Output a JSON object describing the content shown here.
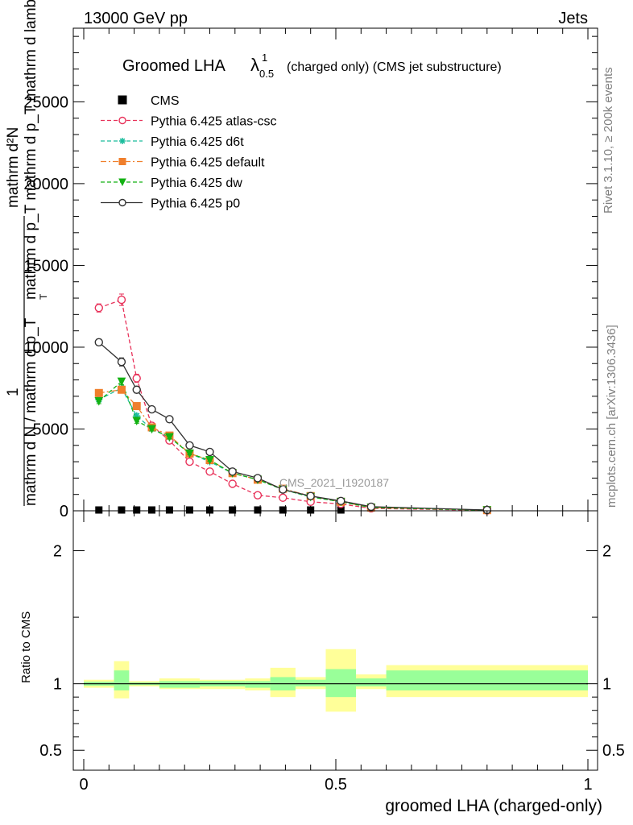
{
  "header": {
    "left": "13000 GeV pp",
    "right": "Jets"
  },
  "side_labels": {
    "rivet": "Rivet 3.1.10, ≥ 200k events",
    "mcplots": "mcplots.cern.ch [arXiv:1306.3436]"
  },
  "watermark": "CMS_2021_I1920187",
  "colors": {
    "atlas_csc": "#e8325a",
    "d6t": "#1abc9c",
    "default": "#f07f2c",
    "dw": "#13b113",
    "p0": "#333333",
    "band_inner": "#99ff99",
    "band_outer": "#ffff99"
  },
  "chart_data": [
    {
      "type": "line",
      "title_main": "Groomed LHA",
      "title_symbol": "λ",
      "title_sup": "1",
      "title_sub": "0.5",
      "title_rest": "(charged only) (CMS jet substructure)",
      "ylabel_top": "mathrm d²N",
      "ylabel_top2": "mathrm d p_T mathrm d p_T mathrm d lambda",
      "ylabel_one": "1",
      "ylabel_bottom": "mathrm d N / mathrm d p_T",
      "ylabel_sub": "T",
      "xlim": [
        0,
        1
      ],
      "ylim": [
        0,
        29500
      ],
      "yticks": [
        0,
        5000,
        10000,
        15000,
        20000,
        25000
      ],
      "ytick_labels": [
        "0",
        "5000",
        "10000",
        "15000",
        "20000",
        "25000"
      ],
      "grid": false,
      "legend_placement": "top-left",
      "x": [
        0.03,
        0.075,
        0.105,
        0.135,
        0.17,
        0.21,
        0.25,
        0.295,
        0.345,
        0.395,
        0.45,
        0.51,
        0.57,
        0.8
      ],
      "series": [
        {
          "name": "CMS",
          "key": "cms",
          "marker": "square-filled",
          "values": [
            0,
            0,
            0,
            0,
            0,
            0,
            0,
            0,
            0,
            0,
            0,
            0,
            null,
            null
          ]
        },
        {
          "name": "Pythia 6.425 atlas-csc",
          "key": "atlas_csc",
          "marker": "circle-open",
          "dash": "dashed",
          "values": [
            12400,
            12900,
            8100,
            5200,
            4300,
            3000,
            2400,
            1650,
            950,
            800,
            550,
            420,
            150,
            30
          ],
          "errors": [
            250,
            350,
            250,
            150,
            100,
            80,
            60,
            50,
            40,
            30,
            25,
            20,
            10,
            5
          ]
        },
        {
          "name": "Pythia 6.425 d6t",
          "key": "d6t",
          "marker": "star",
          "dash": "dashed",
          "values": [
            6800,
            7500,
            5800,
            5000,
            4500,
            3500,
            3000,
            2300,
            1900,
            1300,
            850,
            550,
            200,
            40
          ],
          "errors": [
            150,
            200,
            150,
            120,
            100,
            80,
            70,
            60,
            50,
            40,
            30,
            20,
            10,
            5
          ]
        },
        {
          "name": "Pythia 6.425 default",
          "key": "default",
          "marker": "square-filled",
          "dash": "dashdot",
          "values": [
            7200,
            7400,
            6400,
            5100,
            4600,
            3500,
            3100,
            2300,
            1900,
            1350,
            900,
            550,
            200,
            40
          ],
          "errors": [
            150,
            200,
            150,
            120,
            100,
            80,
            70,
            60,
            50,
            40,
            30,
            20,
            10,
            5
          ]
        },
        {
          "name": "Pythia 6.425 dw",
          "key": "dw",
          "marker": "triangle-down",
          "dash": "dashed",
          "values": [
            6700,
            7900,
            5500,
            5000,
            4500,
            3500,
            3100,
            2300,
            1900,
            1300,
            850,
            550,
            200,
            40
          ],
          "errors": [
            150,
            200,
            150,
            120,
            100,
            80,
            70,
            60,
            50,
            40,
            30,
            20,
            10,
            5
          ]
        },
        {
          "name": "Pythia 6.425 p0",
          "key": "p0",
          "marker": "circle-open",
          "dash": "solid",
          "values": [
            10300,
            9100,
            7400,
            6200,
            5600,
            4000,
            3600,
            2400,
            2000,
            1300,
            900,
            600,
            250,
            50
          ],
          "errors": [
            200,
            250,
            200,
            150,
            120,
            100,
            80,
            60,
            50,
            40,
            30,
            20,
            10,
            5
          ]
        }
      ]
    },
    {
      "type": "area",
      "ylabel": "Ratio to CMS",
      "xlabel": "groomed LHA (charged-only)",
      "xlim": [
        0,
        1
      ],
      "ylim": [
        0.35,
        2.3
      ],
      "yticks": [
        0.5,
        1,
        2
      ],
      "ytick_labels": [
        "0.5",
        "1",
        "2"
      ],
      "xticks": [
        0,
        0.5,
        1
      ],
      "xtick_labels": [
        "0",
        "0.5",
        "1"
      ],
      "reference_line": 1,
      "bins": [
        {
          "lo": 0.0,
          "hi": 0.06,
          "inner": [
            0.985,
            1.015
          ],
          "outer": [
            0.97,
            1.03
          ]
        },
        {
          "lo": 0.06,
          "hi": 0.09,
          "inner": [
            0.95,
            1.1
          ],
          "outer": [
            0.89,
            1.17
          ]
        },
        {
          "lo": 0.09,
          "hi": 0.15,
          "inner": [
            0.99,
            1.01
          ],
          "outer": [
            0.98,
            1.02
          ]
        },
        {
          "lo": 0.15,
          "hi": 0.23,
          "inner": [
            0.97,
            1.02
          ],
          "outer": [
            0.96,
            1.04
          ]
        },
        {
          "lo": 0.23,
          "hi": 0.32,
          "inner": [
            0.98,
            1.02
          ],
          "outer": [
            0.96,
            1.03
          ]
        },
        {
          "lo": 0.32,
          "hi": 0.37,
          "inner": [
            0.97,
            1.02
          ],
          "outer": [
            0.95,
            1.04
          ]
        },
        {
          "lo": 0.37,
          "hi": 0.42,
          "inner": [
            0.95,
            1.05
          ],
          "outer": [
            0.9,
            1.12
          ]
        },
        {
          "lo": 0.42,
          "hi": 0.48,
          "inner": [
            0.98,
            1.03
          ],
          "outer": [
            0.96,
            1.05
          ]
        },
        {
          "lo": 0.48,
          "hi": 0.54,
          "inner": [
            0.9,
            1.11
          ],
          "outer": [
            0.79,
            1.26
          ]
        },
        {
          "lo": 0.54,
          "hi": 0.6,
          "inner": [
            0.98,
            1.04
          ],
          "outer": [
            0.96,
            1.07
          ]
        },
        {
          "lo": 0.6,
          "hi": 1.0,
          "inner": [
            0.95,
            1.1
          ],
          "outer": [
            0.9,
            1.14
          ]
        }
      ]
    }
  ]
}
